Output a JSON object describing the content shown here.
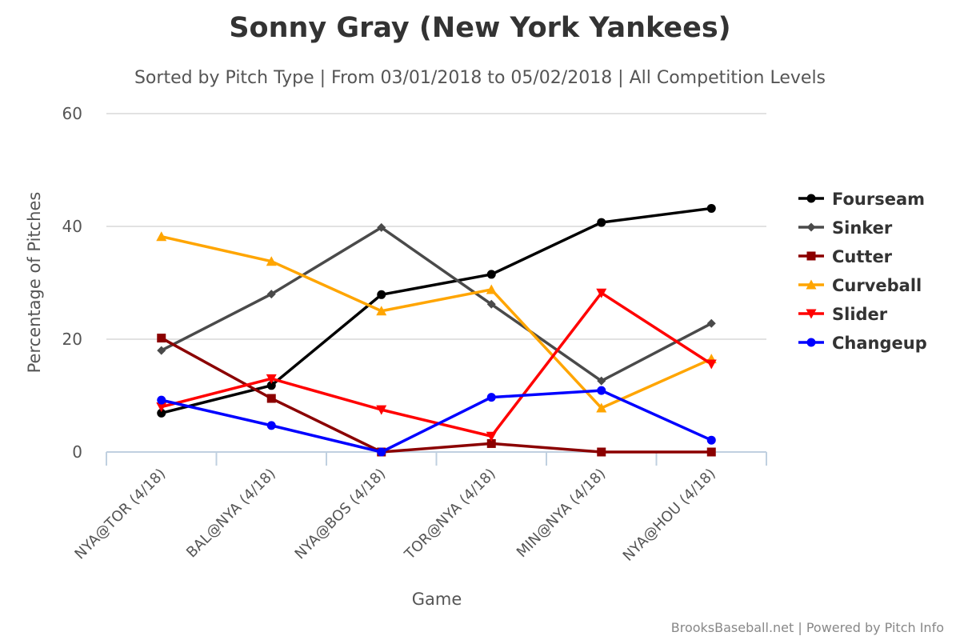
{
  "chart_data": {
    "type": "line",
    "title": "Sonny Gray (New York Yankees)",
    "subtitle": "Sorted by Pitch Type | From 03/01/2018 to 05/02/2018 | All Competition Levels",
    "xlabel": "Game",
    "ylabel": "Percentage of Pitches",
    "ylim": [
      0,
      60
    ],
    "yticks": [
      0,
      20,
      40,
      60
    ],
    "categories": [
      "NYA@TOR (4/18)",
      "BAL@NYA (4/18)",
      "NYA@BOS (4/18)",
      "TOR@NYA (4/18)",
      "MIN@NYA (4/18)",
      "NYA@HOU (4/18)"
    ],
    "grid": true,
    "legend_position": "right",
    "series": [
      {
        "name": "Fourseam",
        "color": "#000000",
        "marker": "circle",
        "values": [
          6.9,
          11.8,
          27.9,
          31.5,
          40.7,
          43.2
        ]
      },
      {
        "name": "Sinker",
        "color": "#4a4a4a",
        "marker": "diamond",
        "values": [
          18.0,
          28.0,
          39.8,
          26.2,
          12.6,
          22.8
        ]
      },
      {
        "name": "Cutter",
        "color": "#8b0000",
        "marker": "square",
        "values": [
          20.2,
          9.5,
          0.0,
          1.5,
          0.0,
          0.0
        ]
      },
      {
        "name": "Curveball",
        "color": "#ffa500",
        "marker": "triangle-up",
        "values": [
          38.2,
          33.8,
          25.0,
          28.8,
          7.8,
          16.5
        ]
      },
      {
        "name": "Slider",
        "color": "#ff0000",
        "marker": "triangle-down",
        "values": [
          8.0,
          13.0,
          7.5,
          2.8,
          28.2,
          15.6
        ]
      },
      {
        "name": "Changeup",
        "color": "#0000ff",
        "marker": "circle",
        "values": [
          9.2,
          4.7,
          0.0,
          9.7,
          10.9,
          2.1
        ]
      }
    ]
  },
  "credits": "BrooksBaseball.net | Powered by Pitch Info"
}
